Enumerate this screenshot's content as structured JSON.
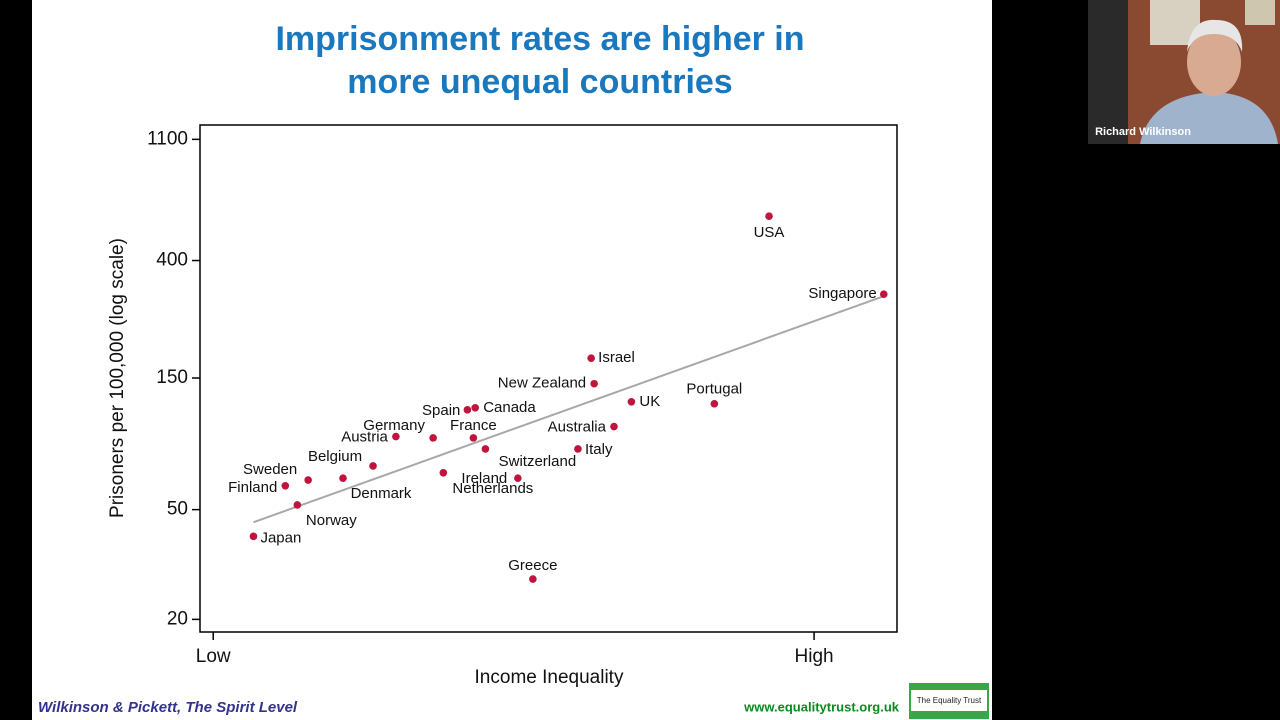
{
  "chart_data": {
    "type": "scatter",
    "title": [
      "Imprisonment rates are higher in",
      "more unequal countries"
    ],
    "x_label": "Income Inequality",
    "y_label": "Prisoners per 100,000 (log scale)",
    "labels": [
      "USA",
      "Singapore",
      "Israel",
      "New Zealand",
      "UK",
      "Portugal",
      "Australia",
      "Italy",
      "Canada",
      "Spain",
      "France",
      "Switzerland",
      "Germany",
      "Austria",
      "Belgium",
      "Sweden",
      "Finland",
      "Denmark",
      "Norway",
      "Japan",
      "Ireland",
      "Netherlands",
      "Greece"
    ],
    "x": [
      0.925,
      1.116,
      0.629,
      0.634,
      0.696,
      0.834,
      0.667,
      0.607,
      0.436,
      0.423,
      0.433,
      0.453,
      0.366,
      0.304,
      0.266,
      0.158,
      0.12,
      0.216,
      0.14,
      0.067,
      0.383,
      0.507,
      0.532
    ],
    "values": [
      579,
      302,
      177,
      143,
      123,
      121,
      100,
      83,
      117,
      115,
      91,
      83,
      91,
      92,
      72,
      64,
      61,
      65,
      52,
      40,
      68,
      65,
      28
    ],
    "color": "#c0143c",
    "trendline": {
      "x": [
        0.067,
        1.116
      ],
      "values": [
        45,
        297
      ],
      "color": "#a8a8a8"
    },
    "log_y": true,
    "xlim": [
      -0.022,
      1.138
    ],
    "ylim": [
      18,
      1240
    ],
    "xticks": [
      {
        "value": 0,
        "label": "Low"
      },
      {
        "value": 1,
        "label": "High"
      }
    ],
    "yticks": [
      20,
      50,
      150,
      400,
      1100
    ],
    "grid": false
  },
  "footer": {
    "source": "Wilkinson & Pickett, The Spirit Level",
    "website": "www.equalitytrust.org.uk",
    "logo": "The Equality Trust"
  },
  "video": {
    "name": "Richard Wilkinson"
  }
}
